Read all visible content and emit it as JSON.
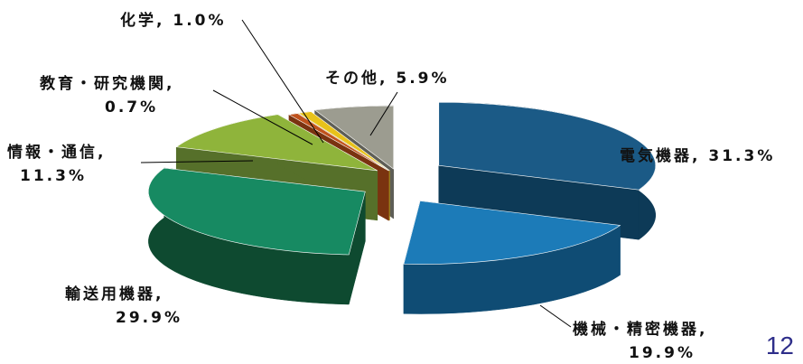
{
  "chart_data": {
    "type": "pie",
    "style": "3d-exploded",
    "unit": "%",
    "slices": [
      {
        "label": "電気機器",
        "value": 31.3,
        "text": [
          "電気機器, 31.3%"
        ],
        "color": "#1b5a86",
        "side": "#0d3a57"
      },
      {
        "label": "機械・精密機器",
        "value": 19.9,
        "text": [
          "機械・精密機器,",
          "19.9%"
        ],
        "color": "#1c7bb8",
        "side": "#0f4c74"
      },
      {
        "label": "輸送用機器",
        "value": 29.9,
        "text": [
          "輸送用機器,",
          "29.9%"
        ],
        "color": "#178a62",
        "side": "#0e4a30"
      },
      {
        "label": "情報・通信",
        "value": 11.3,
        "text": [
          "情報・通信,",
          "11.3%"
        ],
        "color": "#8fb43b",
        "side": "#56702a"
      },
      {
        "label": "教育・研究機関",
        "value": 0.7,
        "text": [
          "教育・研究機関,",
          "0.7%"
        ],
        "color": "#c0521c",
        "side": "#7a3310"
      },
      {
        "label": "化学",
        "value": 1.0,
        "text": [
          "化学, 1.0%"
        ],
        "color": "#e8c21a",
        "side": "#a88a12"
      },
      {
        "label": "その他",
        "value": 5.9,
        "text": [
          "その他, 5.9%"
        ],
        "color": "#9c9c90",
        "side": "#5e5e56"
      }
    ]
  },
  "page_number": "12"
}
